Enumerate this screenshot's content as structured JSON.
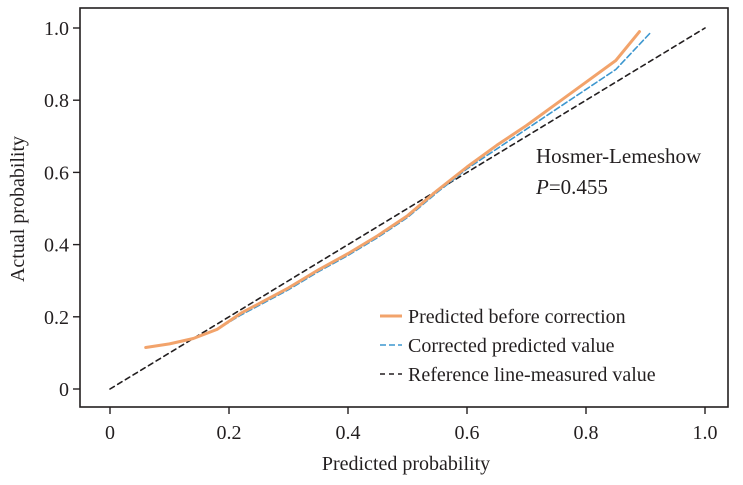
{
  "chart_data": {
    "type": "line",
    "title": "",
    "xlabel": "Predicted probability",
    "ylabel": "Actual probability",
    "xlim": [
      0,
      1.0
    ],
    "ylim": [
      0,
      1.0
    ],
    "xticks": [
      0,
      0.2,
      0.4,
      0.6,
      0.8,
      1.0
    ],
    "xtick_labels": [
      "0",
      "0.2",
      "0.4",
      "0.6",
      "0.8",
      "1.0"
    ],
    "yticks": [
      0,
      0.2,
      0.4,
      0.6,
      0.8,
      1.0
    ],
    "ytick_labels": [
      "0",
      "0.2",
      "0.4",
      "0.6",
      "0.8",
      "1.0"
    ],
    "grid": false,
    "legend_position": "bottom-right",
    "annotation": {
      "line1": "Hosmer-Lemeshow",
      "line2_italic": "P",
      "line2_rest": "=0.455"
    },
    "series": [
      {
        "name": "Predicted before correction",
        "color": "#f2a36b",
        "style": "solid",
        "x": [
          0.06,
          0.1,
          0.14,
          0.18,
          0.22,
          0.26,
          0.3,
          0.35,
          0.4,
          0.45,
          0.5,
          0.55,
          0.6,
          0.65,
          0.7,
          0.75,
          0.8,
          0.85,
          0.89
        ],
        "y": [
          0.115,
          0.125,
          0.14,
          0.165,
          0.21,
          0.245,
          0.28,
          0.33,
          0.375,
          0.425,
          0.48,
          0.55,
          0.615,
          0.675,
          0.73,
          0.79,
          0.85,
          0.91,
          0.99
        ]
      },
      {
        "name": "Corrected predicted value",
        "color": "#3d97cf",
        "style": "dashed",
        "x": [
          0.06,
          0.1,
          0.14,
          0.18,
          0.22,
          0.26,
          0.3,
          0.35,
          0.4,
          0.45,
          0.5,
          0.55,
          0.6,
          0.65,
          0.7,
          0.75,
          0.8,
          0.85,
          0.91
        ],
        "y": [
          0.115,
          0.125,
          0.14,
          0.165,
          0.205,
          0.24,
          0.275,
          0.325,
          0.37,
          0.42,
          0.475,
          0.545,
          0.61,
          0.665,
          0.72,
          0.775,
          0.83,
          0.885,
          0.99
        ]
      },
      {
        "name": "Reference line-measured value",
        "color": "#231f20",
        "style": "dashed",
        "x": [
          0,
          1.0
        ],
        "y": [
          0,
          1.0
        ]
      }
    ]
  }
}
